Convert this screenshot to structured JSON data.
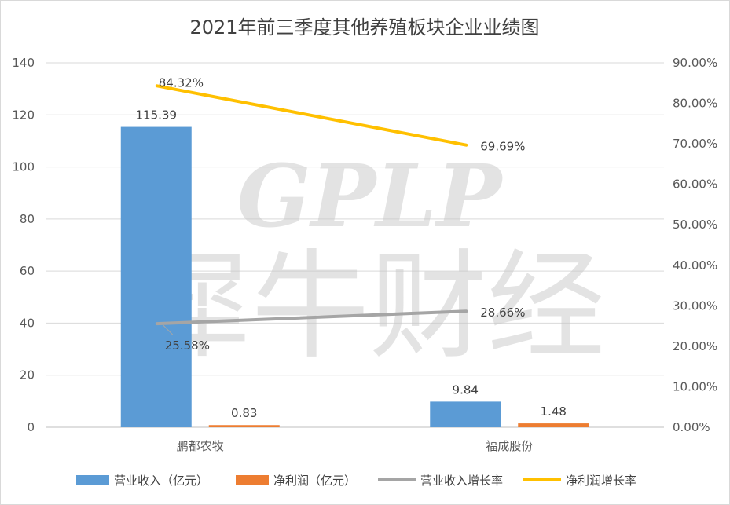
{
  "watermark": {
    "latin": "GPLP",
    "chinese": "犀牛财经"
  },
  "chart_data": {
    "type": "bar",
    "title": "2021年前三季度其他养殖板块企业业绩图",
    "categories": [
      "鹏都农牧",
      "福成股份"
    ],
    "primary_axis": {
      "min": 0,
      "max": 140,
      "step": 20,
      "tick_labels": [
        "0",
        "20",
        "40",
        "60",
        "80",
        "100",
        "120",
        "140"
      ]
    },
    "secondary_axis": {
      "min": 0,
      "max": 90,
      "step": 10,
      "tick_labels": [
        "0.00%",
        "10.00%",
        "20.00%",
        "30.00%",
        "40.00%",
        "50.00%",
        "60.00%",
        "70.00%",
        "80.00%",
        "90.00%"
      ]
    },
    "bar_series": [
      {
        "name": "营业收入（亿元）",
        "color": "#5B9BD5",
        "values": [
          115.39,
          9.84
        ],
        "labels": [
          "115.39",
          "9.84"
        ]
      },
      {
        "name": "净利润（亿元）",
        "color": "#ED7D31",
        "values": [
          0.83,
          1.48
        ],
        "labels": [
          "0.83",
          "1.48"
        ]
      }
    ],
    "line_series": [
      {
        "name": "营业收入增长率",
        "color": "#A5A5A5",
        "values": [
          25.58,
          28.66
        ],
        "labels": [
          "25.58%",
          "28.66%"
        ]
      },
      {
        "name": "净利润增长率",
        "color": "#FFC000",
        "values": [
          84.32,
          69.69
        ],
        "labels": [
          "84.32%",
          "69.69%"
        ]
      }
    ],
    "legend_position": "bottom",
    "grid": true
  }
}
